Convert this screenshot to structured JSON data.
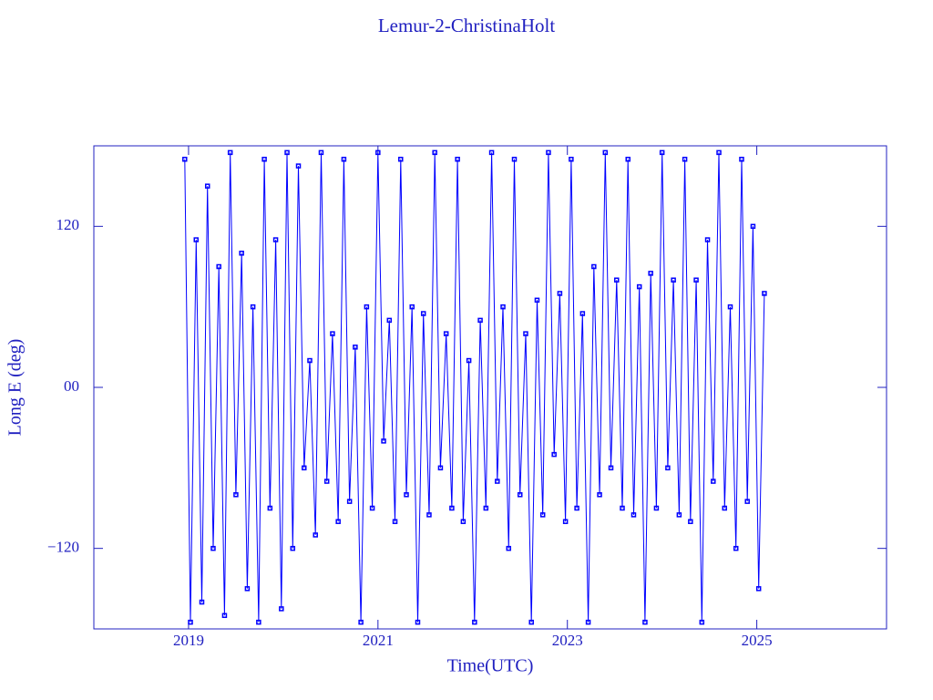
{
  "chart_data": {
    "type": "line",
    "title": "Lemur-2-ChristinaHolt",
    "x_label": "Time(UTC)",
    "y_label": "Long E (deg)",
    "xlim": [
      2018,
      2026.37
    ],
    "ylim": [
      -180,
      180
    ],
    "xticks": [
      2019,
      2021,
      2023,
      2025
    ],
    "yticks": [
      {
        "value": -120,
        "label": "−120"
      },
      {
        "value": 0,
        "label": "00"
      },
      {
        "value": 120,
        "label": "120"
      }
    ],
    "color": "#0000ff",
    "x": [
      2018.96,
      2019.02,
      2019.08,
      2019.14,
      2019.2,
      2019.26,
      2019.32,
      2019.38,
      2019.44,
      2019.5,
      2019.56,
      2019.62,
      2019.68,
      2019.74,
      2019.8,
      2019.86,
      2019.92,
      2019.98,
      2020.04,
      2020.1,
      2020.16,
      2020.22,
      2020.28,
      2020.34,
      2020.4,
      2020.46,
      2020.52,
      2020.58,
      2020.64,
      2020.7,
      2020.76,
      2020.82,
      2020.88,
      2020.94,
      2021.0,
      2021.06,
      2021.12,
      2021.18,
      2021.24,
      2021.3,
      2021.36,
      2021.42,
      2021.48,
      2021.54,
      2021.6,
      2021.66,
      2021.72,
      2021.78,
      2021.84,
      2021.9,
      2021.96,
      2022.02,
      2022.08,
      2022.14,
      2022.2,
      2022.26,
      2022.32,
      2022.38,
      2022.44,
      2022.5,
      2022.56,
      2022.62,
      2022.68,
      2022.74,
      2022.8,
      2022.86,
      2022.92,
      2022.98,
      2023.04,
      2023.1,
      2023.16,
      2023.22,
      2023.28,
      2023.34,
      2023.4,
      2023.46,
      2023.52,
      2023.58,
      2023.64,
      2023.7,
      2023.76,
      2023.82,
      2023.88,
      2023.94,
      2024.0,
      2024.06,
      2024.12,
      2024.18,
      2024.24,
      2024.3,
      2024.36,
      2024.42,
      2024.48,
      2024.54,
      2024.6,
      2024.66,
      2024.72,
      2024.78,
      2024.84,
      2024.9,
      2024.96,
      2025.02,
      2025.08
    ],
    "values": [
      170,
      -175,
      110,
      -160,
      150,
      -120,
      90,
      -170,
      175,
      -80,
      100,
      -150,
      60,
      -175,
      170,
      -90,
      110,
      -165,
      175,
      -120,
      165,
      -60,
      20,
      -110,
      175,
      -70,
      40,
      -100,
      170,
      -85,
      30,
      -175,
      60,
      -90,
      175,
      -40,
      50,
      -100,
      170,
      -80,
      60,
      -175,
      55,
      -95,
      175,
      -60,
      40,
      -90,
      170,
      -100,
      20,
      -175,
      50,
      -90,
      175,
      -70,
      60,
      -120,
      170,
      -80,
      40,
      -175,
      65,
      -95,
      175,
      -50,
      70,
      -100,
      170,
      -90,
      55,
      -175,
      90,
      -80,
      175,
      -60,
      80,
      -90,
      170,
      -95,
      75,
      -175,
      85,
      -90,
      175,
      -60,
      80,
      -95,
      170,
      -100,
      80,
      -175,
      110,
      -70,
      175,
      -90,
      60,
      -120,
      170,
      -85,
      120,
      -150,
      70
    ]
  }
}
